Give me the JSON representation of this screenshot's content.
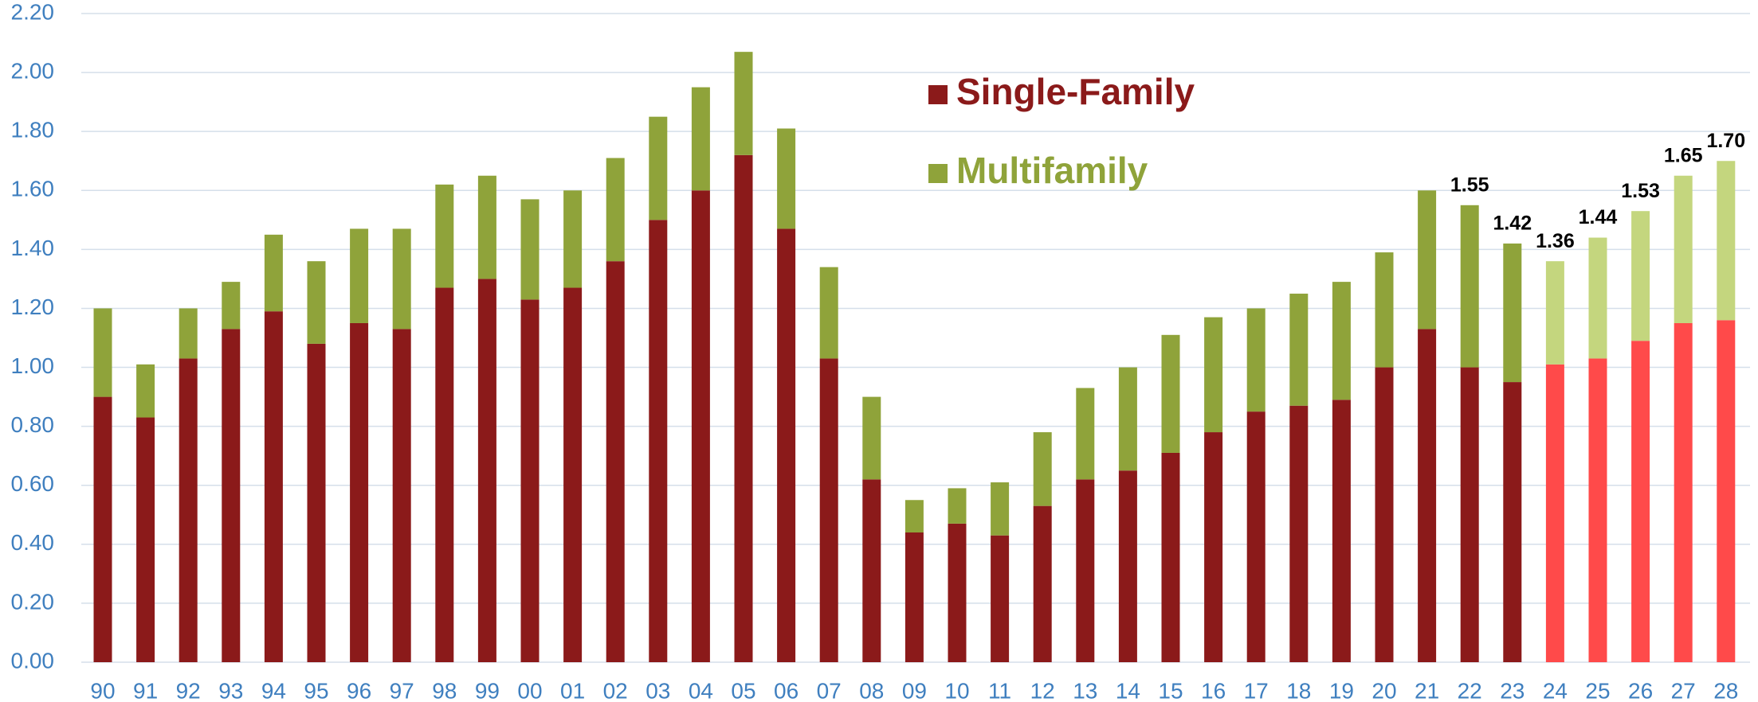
{
  "chart_data": {
    "type": "stacked-bar",
    "categories": [
      "90",
      "91",
      "92",
      "93",
      "94",
      "95",
      "96",
      "97",
      "98",
      "99",
      "00",
      "01",
      "02",
      "03",
      "04",
      "05",
      "06",
      "07",
      "08",
      "09",
      "10",
      "11",
      "12",
      "13",
      "14",
      "15",
      "16",
      "17",
      "18",
      "19",
      "20",
      "21",
      "22",
      "23",
      "24",
      "25",
      "26",
      "27",
      "28"
    ],
    "series": [
      {
        "name": "Single-Family",
        "color": "#8b1a1a",
        "colors": [
          "#8b1a1a",
          "#8b1a1a",
          "#8b1a1a",
          "#8b1a1a",
          "#8b1a1a",
          "#8b1a1a",
          "#8b1a1a",
          "#8b1a1a",
          "#8b1a1a",
          "#8b1a1a",
          "#8b1a1a",
          "#8b1a1a",
          "#8b1a1a",
          "#8b1a1a",
          "#8b1a1a",
          "#8b1a1a",
          "#8b1a1a",
          "#8b1a1a",
          "#8b1a1a",
          "#8b1a1a",
          "#8b1a1a",
          "#8b1a1a",
          "#8b1a1a",
          "#8b1a1a",
          "#8b1a1a",
          "#8b1a1a",
          "#8b1a1a",
          "#8b1a1a",
          "#8b1a1a",
          "#8b1a1a",
          "#8b1a1a",
          "#8b1a1a",
          "#8b1a1a",
          "#8b1a1a",
          "#ff4a4a",
          "#ff4a4a",
          "#ff4a4a",
          "#ff4a4a",
          "#ff4a4a"
        ],
        "values": [
          0.9,
          0.83,
          1.03,
          1.13,
          1.19,
          1.08,
          1.15,
          1.13,
          1.27,
          1.3,
          1.23,
          1.27,
          1.36,
          1.5,
          1.6,
          1.72,
          1.47,
          1.03,
          0.62,
          0.44,
          0.47,
          0.43,
          0.53,
          0.62,
          0.65,
          0.71,
          0.78,
          0.85,
          0.87,
          0.89,
          1.0,
          1.13,
          1.0,
          0.95,
          1.01,
          1.03,
          1.09,
          1.15,
          1.16
        ]
      },
      {
        "name": "Multifamily",
        "color": "#8fa33a",
        "colors": [
          "#8fa33a",
          "#8fa33a",
          "#8fa33a",
          "#8fa33a",
          "#8fa33a",
          "#8fa33a",
          "#8fa33a",
          "#8fa33a",
          "#8fa33a",
          "#8fa33a",
          "#8fa33a",
          "#8fa33a",
          "#8fa33a",
          "#8fa33a",
          "#8fa33a",
          "#8fa33a",
          "#8fa33a",
          "#8fa33a",
          "#8fa33a",
          "#8fa33a",
          "#8fa33a",
          "#8fa33a",
          "#8fa33a",
          "#8fa33a",
          "#8fa33a",
          "#8fa33a",
          "#8fa33a",
          "#8fa33a",
          "#8fa33a",
          "#8fa33a",
          "#8fa33a",
          "#8fa33a",
          "#8fa33a",
          "#8fa33a",
          "#c4d67e",
          "#c4d67e",
          "#c4d67e",
          "#c4d67e",
          "#c4d67e"
        ],
        "values": [
          0.3,
          0.18,
          0.17,
          0.16,
          0.26,
          0.28,
          0.32,
          0.34,
          0.35,
          0.35,
          0.34,
          0.33,
          0.35,
          0.35,
          0.35,
          0.35,
          0.34,
          0.31,
          0.28,
          0.11,
          0.12,
          0.18,
          0.25,
          0.31,
          0.35,
          0.4,
          0.39,
          0.35,
          0.38,
          0.4,
          0.39,
          0.47,
          0.55,
          0.47,
          0.35,
          0.41,
          0.44,
          0.5,
          0.54
        ]
      }
    ],
    "annotations": [
      {
        "x": "22",
        "text": "1.55"
      },
      {
        "x": "23",
        "text": "1.42"
      },
      {
        "x": "24",
        "text": "1.36"
      },
      {
        "x": "25",
        "text": "1.44"
      },
      {
        "x": "26",
        "text": "1.53"
      },
      {
        "x": "27",
        "text": "1.65"
      },
      {
        "x": "28",
        "text": "1.70"
      }
    ],
    "ylim": [
      0,
      2.2
    ],
    "yticks": [
      {
        "value": 0,
        "label": "0.00"
      },
      {
        "value": 0.2,
        "label": "0.20"
      },
      {
        "value": 0.4,
        "label": "0.40"
      },
      {
        "value": 0.6,
        "label": "0.60"
      },
      {
        "value": 0.8,
        "label": "0.80"
      },
      {
        "value": 1,
        "label": "1.00"
      },
      {
        "value": 1.2,
        "label": "1.20"
      },
      {
        "value": 1.4,
        "label": "1.40"
      },
      {
        "value": 1.6,
        "label": "1.60"
      },
      {
        "value": 1.8,
        "label": "1.80"
      },
      {
        "value": 2,
        "label": "2.00"
      },
      {
        "value": 2.2,
        "label": "2.20"
      }
    ],
    "grid": true
  }
}
